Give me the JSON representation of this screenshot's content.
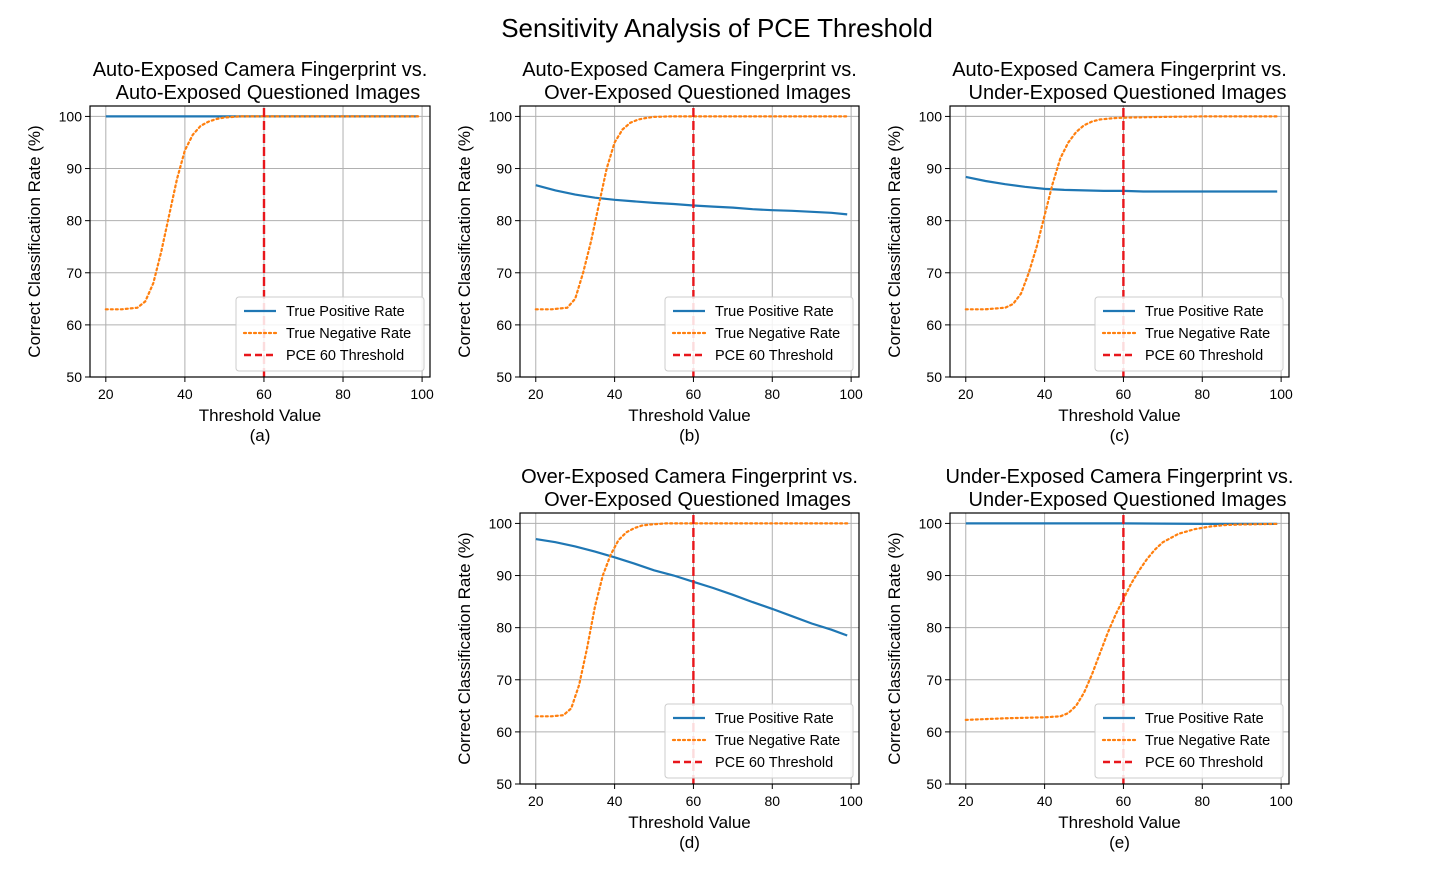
{
  "figure_title": "Sensitivity Analysis of PCE Threshold",
  "colors": {
    "tpr": "#1f77b4",
    "tnr": "#ff7f0e",
    "threshold": "#e8161b",
    "grid": "#b0b0b0"
  },
  "chart_data": [
    {
      "type": "line",
      "panel": "(a)",
      "title_lines": [
        "Auto-Exposed Camera Fingerprint vs.",
        "Auto-Exposed Questioned Images"
      ],
      "xlabel": "Threshold Value",
      "ylabel": "Correct Classification Rate (%)",
      "xlim": [
        16,
        102
      ],
      "ylim": [
        50,
        102
      ],
      "xticks": [
        20,
        40,
        60,
        80,
        100
      ],
      "yticks": [
        50,
        60,
        70,
        80,
        90,
        100
      ],
      "grid": true,
      "legend_position": "lower-right",
      "threshold_line": 60,
      "series": [
        {
          "name": "True Positive Rate",
          "style": "solid",
          "x": [
            20,
            40,
            60,
            80,
            99
          ],
          "y": [
            100,
            100,
            100,
            100,
            100
          ]
        },
        {
          "name": "True Negative Rate",
          "style": "dotted",
          "x": [
            20,
            24,
            28,
            30,
            32,
            34,
            36,
            38,
            40,
            42,
            44,
            46,
            48,
            50,
            54,
            58,
            62,
            70,
            80,
            90,
            99
          ],
          "y": [
            63,
            63,
            63.3,
            64.5,
            68,
            74,
            81,
            88,
            93.5,
            96.5,
            98.2,
            99,
            99.5,
            99.8,
            100,
            100,
            100,
            100,
            100,
            100,
            100
          ]
        },
        {
          "name": "PCE 60 Threshold",
          "style": "dashed",
          "x": [
            60,
            60
          ],
          "y": [
            50,
            102
          ]
        }
      ]
    },
    {
      "type": "line",
      "panel": "(b)",
      "title_lines": [
        "Auto-Exposed Camera Fingerprint vs.",
        "Over-Exposed Questioned Images"
      ],
      "xlabel": "Threshold Value",
      "ylabel": "Correct Classification Rate (%)",
      "xlim": [
        16,
        102
      ],
      "ylim": [
        50,
        102
      ],
      "xticks": [
        20,
        40,
        60,
        80,
        100
      ],
      "yticks": [
        50,
        60,
        70,
        80,
        90,
        100
      ],
      "grid": true,
      "legend_position": "lower-right",
      "threshold_line": 60,
      "series": [
        {
          "name": "True Positive Rate",
          "style": "solid",
          "x": [
            20,
            25,
            30,
            35,
            40,
            45,
            50,
            55,
            60,
            65,
            70,
            75,
            80,
            85,
            90,
            95,
            99
          ],
          "y": [
            86.8,
            85.8,
            85,
            84.4,
            84,
            83.7,
            83.4,
            83.2,
            82.9,
            82.7,
            82.5,
            82.2,
            82,
            81.9,
            81.7,
            81.5,
            81.2
          ]
        },
        {
          "name": "True Negative Rate",
          "style": "dotted",
          "x": [
            20,
            24,
            28,
            30,
            32,
            34,
            36,
            38,
            40,
            42,
            44,
            46,
            48,
            50,
            54,
            58,
            62,
            70,
            80,
            90,
            99
          ],
          "y": [
            63,
            63,
            63.3,
            65,
            70,
            76,
            83,
            90,
            95,
            97.5,
            98.8,
            99.4,
            99.7,
            99.9,
            100,
            100,
            100,
            100,
            100,
            100,
            100
          ]
        },
        {
          "name": "PCE 60 Threshold",
          "style": "dashed",
          "x": [
            60,
            60
          ],
          "y": [
            50,
            102
          ]
        }
      ]
    },
    {
      "type": "line",
      "panel": "(c)",
      "title_lines": [
        "Auto-Exposed Camera Fingerprint vs.",
        "Under-Exposed Questioned Images"
      ],
      "xlabel": "Threshold Value",
      "ylabel": "Correct Classification Rate (%)",
      "xlim": [
        16,
        102
      ],
      "ylim": [
        50,
        102
      ],
      "xticks": [
        20,
        40,
        60,
        80,
        100
      ],
      "yticks": [
        50,
        60,
        70,
        80,
        90,
        100
      ],
      "grid": true,
      "legend_position": "lower-right",
      "threshold_line": 60,
      "series": [
        {
          "name": "True Positive Rate",
          "style": "solid",
          "x": [
            20,
            25,
            30,
            35,
            40,
            45,
            50,
            55,
            60,
            65,
            70,
            80,
            90,
            99
          ],
          "y": [
            88.4,
            87.6,
            87,
            86.5,
            86.1,
            85.9,
            85.8,
            85.7,
            85.7,
            85.6,
            85.6,
            85.6,
            85.6,
            85.6
          ]
        },
        {
          "name": "True Negative Rate",
          "style": "dotted",
          "x": [
            20,
            25,
            30,
            32,
            34,
            36,
            38,
            40,
            42,
            44,
            46,
            48,
            50,
            52,
            54,
            58,
            62,
            70,
            80,
            90,
            99
          ],
          "y": [
            63,
            63,
            63.3,
            64,
            66,
            70,
            75,
            81,
            87,
            92,
            95,
            97,
            98.3,
            99,
            99.4,
            99.7,
            99.8,
            99.9,
            100,
            100,
            100
          ]
        },
        {
          "name": "PCE 60 Threshold",
          "style": "dashed",
          "x": [
            60,
            60
          ],
          "y": [
            50,
            102
          ]
        }
      ]
    },
    {
      "type": "line",
      "panel": "(d)",
      "title_lines": [
        "Over-Exposed Camera Fingerprint vs.",
        "Over-Exposed Questioned Images"
      ],
      "xlabel": "Threshold Value",
      "ylabel": "Correct Classification Rate (%)",
      "xlim": [
        16,
        102
      ],
      "ylim": [
        50,
        102
      ],
      "xticks": [
        20,
        40,
        60,
        80,
        100
      ],
      "yticks": [
        50,
        60,
        70,
        80,
        90,
        100
      ],
      "grid": true,
      "legend_position": "lower-right",
      "threshold_line": 60,
      "series": [
        {
          "name": "True Positive Rate",
          "style": "solid",
          "x": [
            20,
            25,
            30,
            35,
            40,
            45,
            50,
            55,
            60,
            65,
            70,
            75,
            80,
            85,
            90,
            95,
            99
          ],
          "y": [
            97,
            96.4,
            95.6,
            94.6,
            93.5,
            92.3,
            91,
            90,
            88.8,
            87.6,
            86.3,
            84.9,
            83.6,
            82.2,
            80.8,
            79.6,
            78.5
          ]
        },
        {
          "name": "True Negative Rate",
          "style": "dotted",
          "x": [
            20,
            24,
            27,
            29,
            31,
            33,
            35,
            37,
            39,
            41,
            43,
            45,
            47,
            49,
            53,
            58,
            62,
            70,
            80,
            90,
            99
          ],
          "y": [
            63,
            63,
            63.2,
            64.5,
            69,
            76,
            84,
            90,
            94,
            96.8,
            98.3,
            99.1,
            99.6,
            99.8,
            100,
            100,
            100,
            100,
            100,
            100,
            100
          ]
        },
        {
          "name": "PCE 60 Threshold",
          "style": "dashed",
          "x": [
            60,
            60
          ],
          "y": [
            50,
            102
          ]
        }
      ]
    },
    {
      "type": "line",
      "panel": "(e)",
      "title_lines": [
        "Under-Exposed Camera Fingerprint vs.",
        "Under-Exposed Questioned Images"
      ],
      "xlabel": "Threshold Value",
      "ylabel": "Correct Classification Rate (%)",
      "xlim": [
        16,
        102
      ],
      "ylim": [
        50,
        102
      ],
      "xticks": [
        20,
        40,
        60,
        80,
        100
      ],
      "yticks": [
        50,
        60,
        70,
        80,
        90,
        100
      ],
      "grid": true,
      "legend_position": "lower-right",
      "threshold_line": 60,
      "series": [
        {
          "name": "True Positive Rate",
          "style": "solid",
          "x": [
            20,
            40,
            60,
            80,
            99
          ],
          "y": [
            100,
            100,
            100,
            99.9,
            99.9
          ]
        },
        {
          "name": "True Negative Rate",
          "style": "dotted",
          "x": [
            20,
            30,
            40,
            44,
            46,
            48,
            50,
            52,
            54,
            56,
            58,
            60,
            62,
            64,
            66,
            68,
            70,
            74,
            78,
            82,
            86,
            90,
            99
          ],
          "y": [
            62.3,
            62.6,
            62.8,
            63,
            63.6,
            65,
            67.5,
            71,
            75,
            79,
            82.5,
            85.5,
            88.5,
            91,
            93.2,
            95,
            96.4,
            98,
            98.9,
            99.4,
            99.7,
            99.8,
            99.9
          ]
        },
        {
          "name": "PCE 60 Threshold",
          "style": "dashed",
          "x": [
            60,
            60
          ],
          "y": [
            50,
            102
          ]
        }
      ]
    }
  ]
}
